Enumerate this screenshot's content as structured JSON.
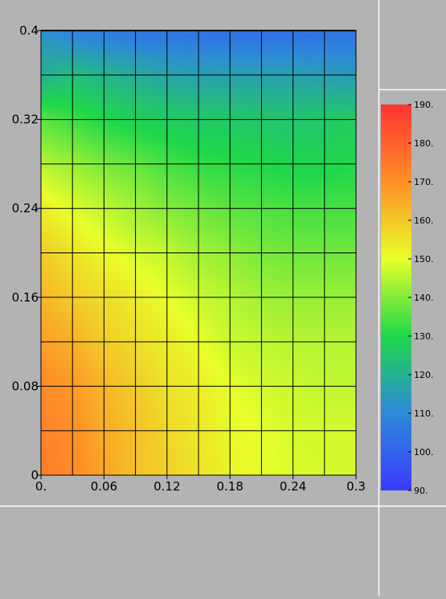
{
  "chart_data": {
    "type": "heatmap",
    "xlim": [
      0,
      0.3
    ],
    "ylim": [
      0,
      0.4
    ],
    "x_ticks": [
      {
        "value": 0,
        "label": "0."
      },
      {
        "value": 0.06,
        "label": "0.06"
      },
      {
        "value": 0.12,
        "label": "0.12"
      },
      {
        "value": 0.18,
        "label": "0.18"
      },
      {
        "value": 0.24,
        "label": "0.24"
      },
      {
        "value": 0.3,
        "label": "0.3"
      }
    ],
    "y_ticks": [
      {
        "value": 0,
        "label": "0"
      },
      {
        "value": 0.08,
        "label": "0.08"
      },
      {
        "value": 0.16,
        "label": "0.16"
      },
      {
        "value": 0.24,
        "label": "0.24"
      },
      {
        "value": 0.32,
        "label": "0.32"
      },
      {
        "value": 0.4,
        "label": "0.4"
      }
    ],
    "grid": true,
    "grid_x": [
      0,
      0.03,
      0.06,
      0.09,
      0.12,
      0.15,
      0.18,
      0.21,
      0.24,
      0.27,
      0.3
    ],
    "grid_y": [
      0,
      0.04,
      0.08,
      0.12,
      0.16,
      0.2,
      0.24,
      0.28,
      0.32,
      0.36,
      0.4
    ],
    "colorbar": {
      "min": 90,
      "max": 190,
      "ticks": [
        {
          "value": 190,
          "label": "190."
        },
        {
          "value": 180,
          "label": "180."
        },
        {
          "value": 170,
          "label": "170."
        },
        {
          "value": 160,
          "label": "160."
        },
        {
          "value": 150,
          "label": "150."
        },
        {
          "value": 140,
          "label": "140."
        },
        {
          "value": 130,
          "label": "130."
        },
        {
          "value": 120,
          "label": "120."
        },
        {
          "value": 110,
          "label": "110."
        },
        {
          "value": 100,
          "label": "100."
        },
        {
          "value": 90,
          "label": "90."
        }
      ],
      "colors": [
        "#3a3aff",
        "#2d8ad9",
        "#1fd84a",
        "#e8ff2a",
        "#ff8f26",
        "#ff3333"
      ]
    },
    "node_x": [
      0,
      0.03,
      0.06,
      0.09,
      0.12,
      0.15,
      0.18,
      0.21,
      0.24,
      0.27,
      0.3
    ],
    "node_y": [
      0.4,
      0.36,
      0.32,
      0.28,
      0.24,
      0.2,
      0.16,
      0.12,
      0.08,
      0.04,
      0
    ],
    "values": [
      [
        112,
        108,
        106,
        105,
        104,
        104,
        103,
        103,
        103,
        104,
        105
      ],
      [
        120,
        123,
        121,
        119,
        117,
        116,
        116,
        116,
        116,
        115,
        114
      ],
      [
        136,
        133,
        130,
        128,
        127,
        126,
        126,
        125,
        125,
        126,
        127
      ],
      [
        145,
        142,
        139,
        137,
        134,
        132,
        131,
        130,
        129,
        129,
        130
      ],
      [
        153,
        149,
        146,
        143,
        140,
        138,
        136,
        135,
        134,
        134,
        134
      ],
      [
        159,
        155,
        151,
        148,
        146,
        143,
        141,
        139,
        138,
        138,
        138
      ],
      [
        163,
        159,
        156,
        153,
        150,
        147,
        145,
        143,
        142,
        142,
        142
      ],
      [
        167,
        164,
        159,
        156,
        153,
        150,
        147,
        146,
        145,
        145,
        145
      ],
      [
        171,
        168,
        163,
        159,
        155,
        153,
        150,
        148,
        147,
        146,
        146
      ],
      [
        173,
        170,
        165,
        161,
        157,
        154,
        151,
        150,
        148,
        148,
        148
      ],
      [
        174,
        171,
        166,
        161,
        158,
        155,
        152,
        150,
        149,
        148,
        148
      ]
    ]
  }
}
